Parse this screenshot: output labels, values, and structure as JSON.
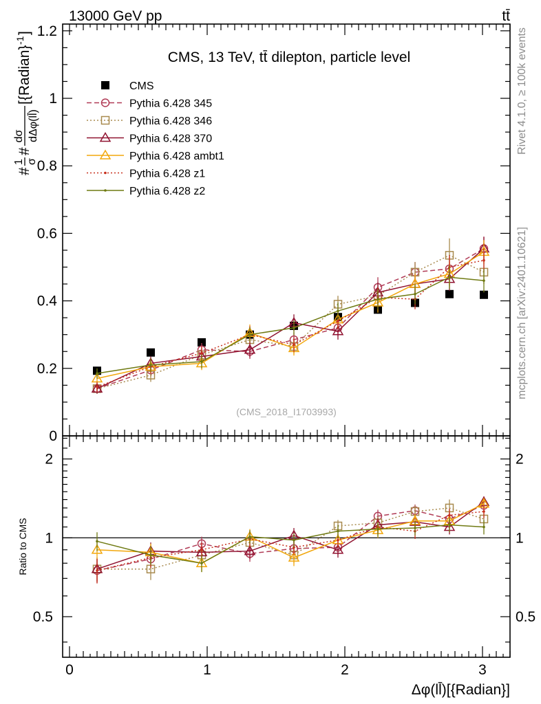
{
  "header": {
    "energy_label": "13000 GeV pp",
    "process_label": "tt̄"
  },
  "side_labels": {
    "rivet": "Rivet 4.1.0, ≥ 100k events",
    "mcplots": "mcplots.cern.ch [arXiv:2401.10621]"
  },
  "colors": {
    "CMS": "#000000",
    "Pythia 6.428 345": "#b03a55",
    "Pythia 6.428 346": "#a88a4e",
    "Pythia 6.428 370": "#8f1230",
    "Pythia 6.428 ambt1": "#f2a70c",
    "Pythia 6.428 z1": "#c8301d",
    "Pythia 6.428 z2": "#6f7a12"
  },
  "chart_data": [
    {
      "type": "line",
      "title": "CMS, 13 TeV, tt̄ dilepton, particle level",
      "watermark": "(CMS_2018_I1703993)",
      "ylabel": "#1σ#dσdΔφ(ll̄)[{Radian}-1]",
      "ylabel_parts": {
        "a": "#",
        "b": "1",
        "c": "σ",
        "d": "#",
        "e": "dσ",
        "f": "dΔφ(ll̄)",
        "g": "[{Radian}",
        "h": "-1",
        "i": "]"
      },
      "xlim": [
        -0.05,
        3.2
      ],
      "ylim": [
        0,
        1.22
      ],
      "yticks": [
        0,
        0.2,
        0.4,
        0.6,
        0.8,
        1,
        1.2
      ],
      "ytick_labels": [
        "0",
        "0.2",
        "0.4",
        "0.6",
        "0.8",
        "1",
        "1.2"
      ],
      "x": [
        0.2,
        0.59,
        0.96,
        1.31,
        1.63,
        1.95,
        2.24,
        2.51,
        2.76,
        3.01
      ],
      "series": [
        {
          "name": "CMS",
          "style": "data",
          "values": [
            0.193,
            0.247,
            0.277,
            0.3,
            0.326,
            0.352,
            0.374,
            0.394,
            0.42,
            0.418
          ],
          "errors": [
            0.008,
            0.008,
            0.008,
            0.009,
            0.009,
            0.009,
            0.01,
            0.01,
            0.01,
            0.011
          ]
        },
        {
          "name": "Pythia 6.428 345",
          "style": "circle-dashed",
          "values": [
            0.14,
            0.195,
            0.255,
            0.25,
            0.285,
            0.32,
            0.44,
            0.485,
            0.495,
            0.555
          ],
          "errors": [
            0.015,
            0.02,
            0.02,
            0.022,
            0.022,
            0.025,
            0.03,
            0.03,
            0.035,
            0.035
          ]
        },
        {
          "name": "Pythia 6.428 346",
          "style": "square-dotted",
          "values": [
            0.14,
            0.18,
            0.24,
            0.285,
            0.265,
            0.39,
            0.415,
            0.485,
            0.535,
            0.485
          ],
          "errors": [
            0.015,
            0.02,
            0.02,
            0.022,
            0.022,
            0.025,
            0.03,
            0.03,
            0.05,
            0.035
          ]
        },
        {
          "name": "Pythia 6.428 370",
          "style": "triangle-solid",
          "values": [
            0.14,
            0.215,
            0.235,
            0.255,
            0.335,
            0.31,
            0.425,
            0.45,
            0.465,
            0.555
          ],
          "errors": [
            0.015,
            0.02,
            0.02,
            0.022,
            0.025,
            0.025,
            0.03,
            0.03,
            0.035,
            0.035
          ]
        },
        {
          "name": "Pythia 6.428 ambt1",
          "style": "triangle-solid-light",
          "values": [
            0.17,
            0.205,
            0.215,
            0.305,
            0.26,
            0.345,
            0.395,
            0.45,
            0.48,
            0.545
          ],
          "errors": [
            0.015,
            0.02,
            0.02,
            0.025,
            0.022,
            0.025,
            0.03,
            0.03,
            0.035,
            0.035
          ]
        },
        {
          "name": "Pythia 6.428 z1",
          "style": "dot-dotted",
          "values": [
            0.145,
            0.205,
            0.245,
            0.3,
            0.27,
            0.34,
            0.41,
            0.405,
            0.5,
            0.52
          ],
          "errors": [
            0.015,
            0.02,
            0.02,
            0.025,
            0.022,
            0.025,
            0.03,
            0.03,
            0.035,
            0.035
          ]
        },
        {
          "name": "Pythia 6.428 z2",
          "style": "dot-solid",
          "values": [
            0.185,
            0.21,
            0.22,
            0.3,
            0.32,
            0.37,
            0.405,
            0.42,
            0.47,
            0.46
          ],
          "errors": [
            0.015,
            0.02,
            0.02,
            0.022,
            0.022,
            0.025,
            0.03,
            0.03,
            0.035,
            0.035
          ]
        }
      ]
    },
    {
      "type": "line",
      "title": "",
      "xlabel": "Δφ(ll̄)[{Radian}]",
      "ylabel": "Ratio to CMS",
      "xlim": [
        -0.05,
        3.2
      ],
      "ylim": [
        0.35,
        2.45
      ],
      "xticks": [
        0,
        1,
        2,
        3
      ],
      "xtick_labels": [
        "0",
        "1",
        "2",
        "3"
      ],
      "yticks": [
        0.5,
        1,
        2
      ],
      "ytick_labels": [
        "0.5",
        "1",
        "2"
      ],
      "reference_line": 1,
      "x": [
        0.2,
        0.59,
        0.96,
        1.31,
        1.63,
        1.95,
        2.24,
        2.51,
        2.76,
        3.01
      ],
      "series": [
        {
          "name": "Pythia 6.428 345",
          "style": "circle-dashed",
          "values": [
            0.75,
            0.83,
            0.95,
            0.87,
            0.91,
            0.92,
            1.21,
            1.27,
            1.18,
            1.33
          ],
          "errors": [
            0.08,
            0.07,
            0.06,
            0.06,
            0.06,
            0.06,
            0.07,
            0.07,
            0.07,
            0.07
          ]
        },
        {
          "name": "Pythia 6.428 346",
          "style": "square-dotted",
          "values": [
            0.76,
            0.76,
            0.86,
            0.96,
            0.86,
            1.11,
            1.14,
            1.26,
            1.3,
            1.18
          ],
          "errors": [
            0.08,
            0.07,
            0.06,
            0.06,
            0.06,
            0.06,
            0.07,
            0.07,
            0.1,
            0.07
          ]
        },
        {
          "name": "Pythia 6.428 370",
          "style": "triangle-solid",
          "values": [
            0.76,
            0.89,
            0.88,
            0.89,
            1.02,
            0.9,
            1.12,
            1.15,
            1.1,
            1.37
          ],
          "errors": [
            0.08,
            0.07,
            0.06,
            0.06,
            0.07,
            0.06,
            0.07,
            0.07,
            0.07,
            0.07
          ]
        },
        {
          "name": "Pythia 6.428 ambt1",
          "style": "triangle-solid-light",
          "values": [
            0.9,
            0.88,
            0.8,
            1.01,
            0.84,
            0.98,
            1.07,
            1.16,
            1.16,
            1.35
          ],
          "errors": [
            0.08,
            0.07,
            0.06,
            0.07,
            0.06,
            0.06,
            0.07,
            0.07,
            0.07,
            0.07
          ]
        },
        {
          "name": "Pythia 6.428 z1",
          "style": "dot-dotted",
          "values": [
            0.75,
            0.84,
            0.9,
            0.99,
            0.92,
            0.98,
            1.1,
            1.06,
            1.22,
            1.26
          ],
          "errors": [
            0.08,
            0.07,
            0.06,
            0.07,
            0.06,
            0.06,
            0.07,
            0.07,
            0.07,
            0.07
          ]
        },
        {
          "name": "Pythia 6.428 z2",
          "style": "dot-solid",
          "values": [
            0.97,
            0.86,
            0.8,
            1.01,
            0.98,
            1.06,
            1.08,
            1.09,
            1.12,
            1.1
          ],
          "errors": [
            0.08,
            0.07,
            0.06,
            0.06,
            0.06,
            0.06,
            0.07,
            0.07,
            0.07,
            0.07
          ]
        }
      ]
    }
  ]
}
